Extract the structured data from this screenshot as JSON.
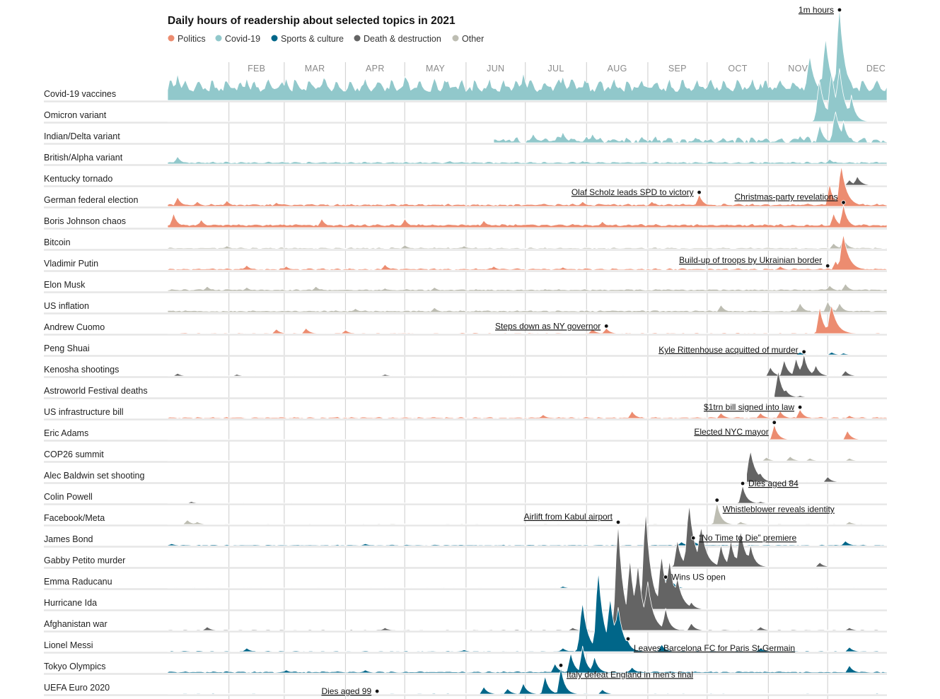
{
  "chart_data": {
    "type": "area",
    "subtype": "ridgeline",
    "title": "Daily hours of readership about selected topics in 2021",
    "xlabel": "",
    "ylabel": "",
    "x_domain": [
      "2021-01-01",
      "2021-12-31"
    ],
    "months": [
      "FEB",
      "MAR",
      "APR",
      "MAY",
      "JUN",
      "JUL",
      "AUG",
      "SEP",
      "OCT",
      "NOV",
      "DEC"
    ],
    "grid": true,
    "legend_position": "top-left",
    "categories": [
      {
        "name": "Politics",
        "color": "#ec8c70"
      },
      {
        "name": "Covid-19",
        "color": "#91c8cb"
      },
      {
        "name": "Sports & culture",
        "color": "#006689"
      },
      {
        "name": "Death & destruction",
        "color": "#646464"
      },
      {
        "name": "Other",
        "color": "#bdbdb2"
      }
    ],
    "scale_annotation": {
      "label": "1m hours",
      "series": "Covid-19 vaccines",
      "day": 340,
      "value": 1.0
    },
    "series": [
      {
        "name": "Covid-19 vaccines",
        "category": "Covid-19",
        "base": 0.1,
        "noise": 0.06,
        "weekly": 0.1,
        "peaks": [
          [
            5,
            0.25
          ],
          [
            40,
            0.2
          ],
          [
            60,
            0.2
          ],
          [
            80,
            0.18
          ],
          [
            100,
            0.17
          ],
          [
            120,
            0.22
          ],
          [
            140,
            0.18
          ],
          [
            180,
            0.26
          ],
          [
            200,
            0.22
          ],
          [
            240,
            0.18
          ],
          [
            300,
            0.15
          ],
          [
            325,
            0.45
          ],
          [
            333,
            0.65
          ],
          [
            340,
            1.0
          ]
        ]
      },
      {
        "name": "Omicron variant",
        "category": "Covid-19",
        "base": 0.0,
        "noise": 0.0,
        "weekly": 0,
        "peaks": [
          [
            330,
            0.45
          ],
          [
            336,
            0.55
          ],
          [
            340,
            0.6
          ],
          [
            346,
            0.3
          ]
        ]
      },
      {
        "name": "Indian/Delta variant",
        "category": "Covid-19",
        "base": 0.0,
        "noise": 0.04,
        "weekly": 0.04,
        "start": 165,
        "peaks": [
          [
            185,
            0.1
          ],
          [
            200,
            0.12
          ],
          [
            215,
            0.1
          ],
          [
            240,
            0.07
          ],
          [
            320,
            0.08
          ],
          [
            330,
            0.2
          ],
          [
            338,
            0.35
          ],
          [
            342,
            0.25
          ]
        ]
      },
      {
        "name": "British/Alpha variant",
        "category": "Covid-19",
        "base": 0.01,
        "noise": 0.01,
        "weekly": 0.01,
        "peaks": [
          [
            5,
            0.08
          ],
          [
            143,
            0.03
          ],
          [
            210,
            0.03
          ],
          [
            335,
            0.05
          ]
        ]
      },
      {
        "name": "Kentucky tornado",
        "category": "Death & destruction",
        "base": 0.0,
        "noise": 0.0,
        "weekly": 0,
        "start": 343,
        "peaks": [
          [
            345,
            0.06
          ],
          [
            349,
            0.1
          ]
        ]
      },
      {
        "name": "German federal election",
        "category": "Politics",
        "base": 0.01,
        "noise": 0.015,
        "weekly": 0.01,
        "peaks": [
          [
            5,
            0.1
          ],
          [
            15,
            0.05
          ],
          [
            30,
            0.06
          ],
          [
            55,
            0.04
          ],
          [
            210,
            0.05
          ],
          [
            245,
            0.05
          ],
          [
            269,
            0.13
          ],
          [
            335,
            0.25
          ],
          [
            341,
            0.45
          ]
        ]
      },
      {
        "name": "Boris Johnson chaos",
        "category": "Politics",
        "base": 0.02,
        "noise": 0.015,
        "weekly": 0.01,
        "peaks": [
          [
            3,
            0.15
          ],
          [
            17,
            0.08
          ],
          [
            78,
            0.09
          ],
          [
            120,
            0.09
          ],
          [
            160,
            0.07
          ],
          [
            220,
            0.06
          ],
          [
            337,
            0.15
          ],
          [
            342,
            0.25
          ]
        ]
      },
      {
        "name": "Bitcoin",
        "category": "Other",
        "base": 0.005,
        "noise": 0.008,
        "weekly": 0.005,
        "peaks": [
          [
            30,
            0.03
          ],
          [
            120,
            0.04
          ],
          [
            150,
            0.03
          ],
          [
            337,
            0.06
          ],
          [
            342,
            0.12
          ]
        ]
      },
      {
        "name": "Vladimir Putin",
        "category": "Politics",
        "base": 0.005,
        "noise": 0.01,
        "weekly": 0.008,
        "peaks": [
          [
            40,
            0.05
          ],
          [
            60,
            0.04
          ],
          [
            110,
            0.06
          ],
          [
            165,
            0.04
          ],
          [
            200,
            0.03
          ],
          [
            310,
            0.04
          ],
          [
            334,
            0.02
          ],
          [
            338,
            0.1
          ],
          [
            342,
            0.4
          ]
        ]
      },
      {
        "name": "Elon Musk",
        "category": "Other",
        "base": 0.01,
        "noise": 0.012,
        "weekly": 0.005,
        "peaks": [
          [
            20,
            0.05
          ],
          [
            40,
            0.04
          ],
          [
            75,
            0.05
          ],
          [
            110,
            0.03
          ],
          [
            135,
            0.04
          ],
          [
            335,
            0.06
          ],
          [
            343,
            0.08
          ]
        ]
      },
      {
        "name": "US inflation",
        "category": "Other",
        "base": 0.01,
        "noise": 0.012,
        "weekly": 0.005,
        "peaks": [
          [
            95,
            0.04
          ],
          [
            135,
            0.05
          ],
          [
            280,
            0.08
          ],
          [
            320,
            0.1
          ],
          [
            334,
            0.12
          ],
          [
            340,
            0.1
          ]
        ]
      },
      {
        "name": "Andrew Cuomo",
        "category": "Politics",
        "base": 0.002,
        "noise": 0.006,
        "weekly": 0.004,
        "peaks": [
          [
            55,
            0.05
          ],
          [
            70,
            0.06
          ],
          [
            90,
            0.04
          ],
          [
            215,
            0.05
          ],
          [
            222,
            0.06
          ],
          [
            330,
            0.3
          ],
          [
            336,
            0.32
          ]
        ]
      },
      {
        "name": "Peng Shuai",
        "category": "Sports & culture",
        "base": 0.0,
        "noise": 0.0,
        "weekly": 0,
        "start": 316,
        "peaks": [
          [
            320,
            0.03
          ],
          [
            336,
            0.03
          ],
          [
            342,
            0.02
          ]
        ]
      },
      {
        "name": "Kenosha shootings",
        "category": "Death & destruction",
        "base": 0.0,
        "noise": 0.004,
        "weekly": 0.003,
        "peaks": [
          [
            5,
            0.03
          ],
          [
            35,
            0.02
          ],
          [
            110,
            0.02
          ],
          [
            305,
            0.1
          ],
          [
            312,
            0.18
          ],
          [
            318,
            0.2
          ],
          [
            322,
            0.25
          ],
          [
            328,
            0.12
          ],
          [
            343,
            0.06
          ]
        ]
      },
      {
        "name": "Astroworld Festival deaths",
        "category": "Death & destruction",
        "base": 0.0,
        "noise": 0.0,
        "weekly": 0,
        "start": 307,
        "peaks": [
          [
            309,
            0.3
          ],
          [
            313,
            0.08
          ],
          [
            320,
            0.02
          ]
        ]
      },
      {
        "name": "US infrastructure bill",
        "category": "Politics",
        "base": 0.005,
        "noise": 0.008,
        "weekly": 0.006,
        "peaks": [
          [
            190,
            0.04
          ],
          [
            235,
            0.08
          ],
          [
            280,
            0.06
          ],
          [
            300,
            0.06
          ],
          [
            310,
            0.08
          ],
          [
            320,
            0.1
          ],
          [
            345,
            0.03
          ]
        ]
      },
      {
        "name": "Eric Adams",
        "category": "Politics",
        "base": 0.0,
        "noise": 0.002,
        "weekly": 0.001,
        "peaks": [
          [
            307,
            0.17
          ],
          [
            344,
            0.1
          ]
        ]
      },
      {
        "name": "COP26 summit",
        "category": "Other",
        "base": 0.0,
        "noise": 0.003,
        "weekly": 0.002,
        "peaks": [
          [
            303,
            0.04
          ],
          [
            315,
            0.05
          ],
          [
            325,
            0.03
          ],
          [
            345,
            0.03
          ]
        ]
      },
      {
        "name": "Alec Baldwin set shooting",
        "category": "Death & destruction",
        "base": 0.0,
        "noise": 0.0,
        "weekly": 0,
        "start": 293,
        "peaks": [
          [
            295,
            0.35
          ],
          [
            300,
            0.1
          ],
          [
            315,
            0.02
          ],
          [
            334,
            0.06
          ]
        ]
      },
      {
        "name": "Colin Powell",
        "category": "Death & destruction",
        "base": 0.0,
        "noise": 0.002,
        "weekly": 0.001,
        "peaks": [
          [
            12,
            0.02
          ],
          [
            291,
            0.2
          ],
          [
            300,
            0.02
          ]
        ]
      },
      {
        "name": "Facebook/Meta",
        "category": "Other",
        "base": 0.002,
        "noise": 0.004,
        "weekly": 0.003,
        "peaks": [
          [
            10,
            0.05
          ],
          [
            15,
            0.03
          ],
          [
            278,
            0.25
          ],
          [
            290,
            0.03
          ],
          [
            345,
            0.03
          ]
        ]
      },
      {
        "name": "James Bond",
        "category": "Sports & culture",
        "base": 0.005,
        "noise": 0.005,
        "weekly": 0.003,
        "peaks": [
          [
            2,
            0.02
          ],
          [
            100,
            0.02
          ],
          [
            260,
            0.04
          ],
          [
            266,
            0.06
          ],
          [
            343,
            0.05
          ]
        ]
      },
      {
        "name": "Gabby Petito murder",
        "category": "Death & destruction",
        "base": 0.0,
        "noise": 0.002,
        "weekly": 0,
        "start": 255,
        "peaks": [
          [
            258,
            0.3
          ],
          [
            264,
            0.7
          ],
          [
            270,
            0.45
          ],
          [
            280,
            0.25
          ],
          [
            285,
            0.3
          ],
          [
            290,
            0.4
          ],
          [
            295,
            0.25
          ],
          [
            330,
            0.05
          ]
        ]
      },
      {
        "name": "Emma Raducanu",
        "category": "Sports & culture",
        "base": 0.0,
        "noise": 0.002,
        "weekly": 0.001,
        "peaks": [
          [
            200,
            0.02
          ],
          [
            252,
            0.1
          ],
          [
            256,
            0.06
          ]
        ]
      },
      {
        "name": "Hurricane Ida",
        "category": "Death & destruction",
        "base": 0.0,
        "noise": 0.0,
        "weekly": 0,
        "start": 238,
        "peaks": [
          [
            242,
            1.1
          ],
          [
            250,
            0.6
          ],
          [
            254,
            0.55
          ],
          [
            258,
            0.35
          ],
          [
            265,
            0.08
          ]
        ]
      },
      {
        "name": "Afghanistan war",
        "category": "Death & destruction",
        "base": 0.002,
        "noise": 0.005,
        "weekly": 0.004,
        "peaks": [
          [
            20,
            0.04
          ],
          [
            110,
            0.03
          ],
          [
            205,
            0.03
          ],
          [
            225,
            0.04
          ],
          [
            228,
            1.2
          ],
          [
            234,
            0.8
          ],
          [
            238,
            0.75
          ],
          [
            243,
            0.55
          ],
          [
            252,
            0.25
          ],
          [
            265,
            0.08
          ],
          [
            300,
            0.04
          ],
          [
            345,
            0.03
          ]
        ]
      },
      {
        "name": "Lionel Messi",
        "category": "Sports & culture",
        "base": 0.002,
        "noise": 0.006,
        "weekly": 0.004,
        "peaks": [
          [
            40,
            0.04
          ],
          [
            150,
            0.02
          ],
          [
            200,
            0.04
          ],
          [
            210,
            0.55
          ],
          [
            218,
            0.9
          ],
          [
            224,
            0.6
          ],
          [
            228,
            0.5
          ],
          [
            233,
            0.12
          ],
          [
            250,
            0.08
          ],
          [
            300,
            0.04
          ],
          [
            345,
            0.05
          ]
        ]
      },
      {
        "name": "Tokyo Olympics",
        "category": "Sports & culture",
        "base": 0.006,
        "noise": 0.008,
        "weekly": 0.006,
        "peaks": [
          [
            60,
            0.03
          ],
          [
            100,
            0.03
          ],
          [
            196,
            0.1
          ],
          [
            204,
            0.22
          ],
          [
            210,
            0.3
          ],
          [
            216,
            0.18
          ],
          [
            235,
            0.06
          ],
          [
            345,
            0.08
          ]
        ]
      },
      {
        "name": "UEFA Euro 2020",
        "category": "Sports & culture",
        "base": 0.002,
        "noise": 0.004,
        "weekly": 0.003,
        "peaks": [
          [
            160,
            0.08
          ],
          [
            172,
            0.06
          ],
          [
            180,
            0.12
          ],
          [
            191,
            0.2
          ],
          [
            199,
            0.3
          ],
          [
            220,
            0.05
          ]
        ]
      }
    ],
    "annotations": [
      {
        "series": "German federal election",
        "day": 269,
        "text": "Olaf Scholz leads SPD to victory",
        "side": "left"
      },
      {
        "series": "Boris Johnson chaos",
        "day": 342,
        "text": "Christmas-party revelations",
        "side": "left-above"
      },
      {
        "series": "Vladimir Putin",
        "day": 334,
        "text": "Build-up of troops by Ukrainian border",
        "side": "left-above"
      },
      {
        "series": "Andrew Cuomo",
        "day": 222,
        "text": "Steps down as NY governor",
        "side": "left"
      },
      {
        "series": "Kenosha shootings",
        "day": 322,
        "text": "Kyle Rittenhouse acquitted of murder",
        "side": "left-top"
      },
      {
        "series": "US infrastructure bill",
        "day": 320,
        "text": "$1trn bill signed into law",
        "side": "left"
      },
      {
        "series": "Eric Adams",
        "day": 307,
        "text": "Elected NYC mayor",
        "side": "left-below"
      },
      {
        "series": "Colin Powell",
        "day": 291,
        "text": "Dies aged 84",
        "side": "right"
      },
      {
        "series": "Afghanistan war",
        "day": 228,
        "text": "Airlift from Kabul airport",
        "side": "left-above"
      },
      {
        "series": "Facebook/Meta",
        "day": 278,
        "text": "Whistleblower reveals identity",
        "side": "right-below"
      },
      {
        "series": "James Bond",
        "day": 266,
        "text": "“No Time to Die” premiere",
        "side": "right"
      },
      {
        "series": "Emma Raducanu",
        "day": 252,
        "text": "Wins US open",
        "side": "right-plain"
      },
      {
        "series": "Lionel Messi",
        "day": 233,
        "text": "Leaves Barcelona FC for Paris St-Germain",
        "side": "right-below"
      },
      {
        "series": "UEFA Euro 2020",
        "day": 199,
        "text": "Italy defeat England in men's final",
        "side": "right-below"
      },
      {
        "series": "UEFA Euro 2020",
        "day": 106,
        "text": "Dies aged 99",
        "side": "left"
      }
    ]
  }
}
